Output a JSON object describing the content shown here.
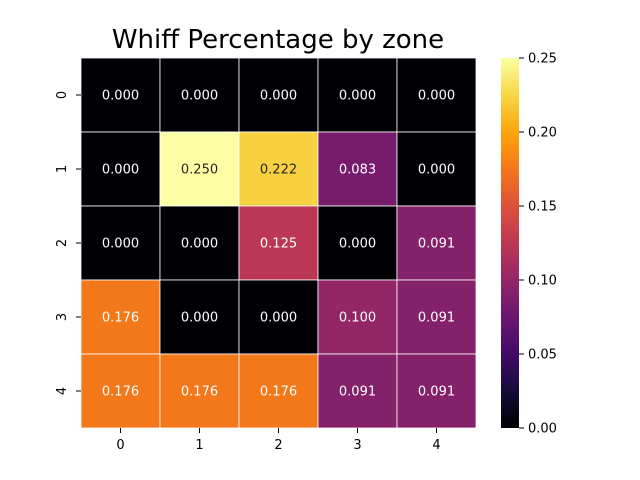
{
  "chart_data": {
    "type": "heatmap",
    "title": "Whiff Percentage by zone",
    "xlabel": "",
    "ylabel": "",
    "x_categories": [
      "0",
      "1",
      "2",
      "3",
      "4"
    ],
    "y_categories": [
      "0",
      "1",
      "2",
      "3",
      "4"
    ],
    "values": [
      [
        0.0,
        0.0,
        0.0,
        0.0,
        0.0
      ],
      [
        0.0,
        0.25,
        0.222,
        0.083,
        0.0
      ],
      [
        0.0,
        0.0,
        0.125,
        0.0,
        0.091
      ],
      [
        0.176,
        0.0,
        0.0,
        0.1,
        0.091
      ],
      [
        0.176,
        0.176,
        0.176,
        0.091,
        0.091
      ]
    ],
    "cell_labels": [
      [
        "0.000",
        "0.000",
        "0.000",
        "0.000",
        "0.000"
      ],
      [
        "0.000",
        "0.250",
        "0.222",
        "0.083",
        "0.000"
      ],
      [
        "0.000",
        "0.000",
        "0.125",
        "0.000",
        "0.091"
      ],
      [
        "0.176",
        "0.000",
        "0.000",
        "0.100",
        "0.091"
      ],
      [
        "0.176",
        "0.176",
        "0.176",
        "0.091",
        "0.091"
      ]
    ],
    "colormap": "inferno",
    "vmin": 0.0,
    "vmax": 0.25,
    "colorbar_ticks": [
      "0.00",
      "0.05",
      "0.10",
      "0.15",
      "0.20",
      "0.25"
    ]
  }
}
